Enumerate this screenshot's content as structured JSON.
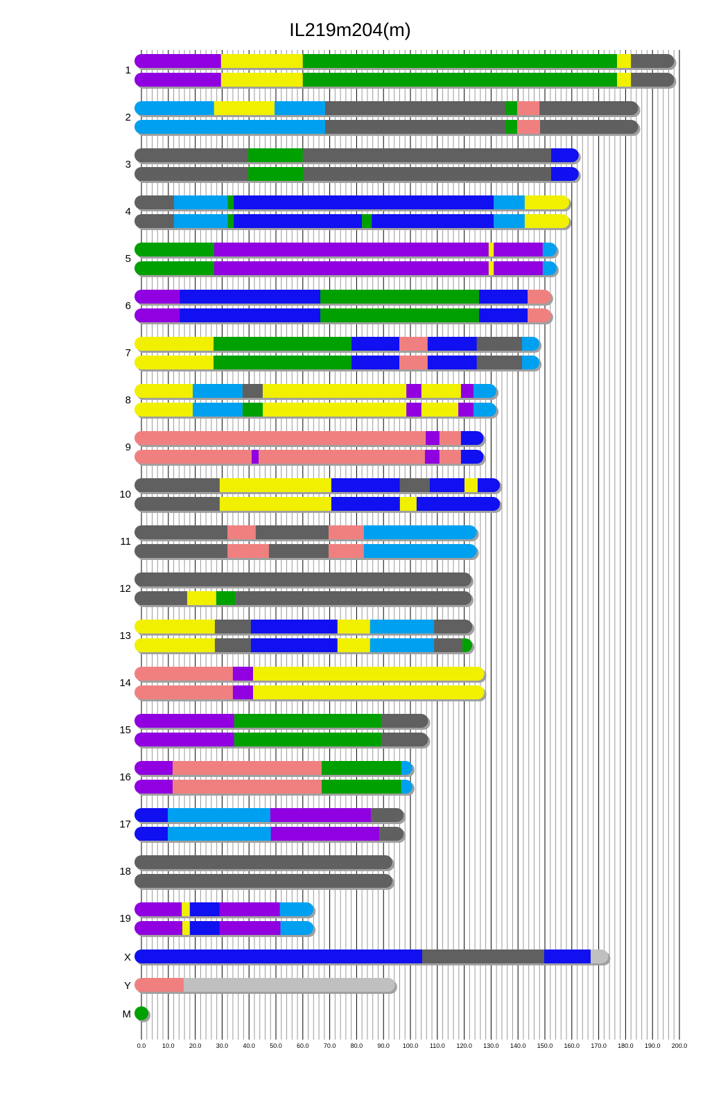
{
  "title": "IL219m204(m)",
  "colors": {
    "P": "#9000e0",
    "Y": "#f0f000",
    "G": "#00a000",
    "D": "#606060",
    "L": "#00a0f0",
    "B": "#1010f0",
    "K": "#f08080",
    "S": "#c0c0c0"
  },
  "chart_data": {
    "type": "chromosome-painting",
    "xlim": [
      0,
      200
    ],
    "xticks": [
      "0.0",
      "10.0",
      "20.0",
      "30.0",
      "40.0",
      "50.0",
      "60.0",
      "70.0",
      "80.0",
      "90.0",
      "100.0",
      "110.0",
      "120.0",
      "130.0",
      "140.0",
      "150.0",
      "160.0",
      "170.0",
      "180.0",
      "190.0",
      "200.0"
    ],
    "chromosomes": [
      {
        "name": "1",
        "length": 195.5,
        "haplotypes": [
          [
            [
              29.6,
              "P"
            ],
            [
              60,
              "Y"
            ],
            [
              176.8,
              "G"
            ],
            [
              182,
              "Y"
            ],
            [
              195.5,
              "D"
            ]
          ],
          [
            [
              29.6,
              "P"
            ],
            [
              60,
              "Y"
            ],
            [
              176.8,
              "G"
            ],
            [
              182,
              "Y"
            ],
            [
              195.5,
              "D"
            ]
          ]
        ]
      },
      {
        "name": "2",
        "length": 182.1,
        "haplotypes": [
          [
            [
              27,
              "L"
            ],
            [
              49.5,
              "Y"
            ],
            [
              68.3,
              "L"
            ],
            [
              135.3,
              "D"
            ],
            [
              139.7,
              "G"
            ],
            [
              148,
              "K"
            ],
            [
              182.1,
              "D"
            ]
          ],
          [
            [
              68.3,
              "L"
            ],
            [
              135.3,
              "D"
            ],
            [
              139.7,
              "G"
            ],
            [
              148.2,
              "K"
            ],
            [
              182.1,
              "D"
            ]
          ]
        ]
      },
      {
        "name": "3",
        "length": 160.0,
        "haplotypes": [
          [
            [
              39.7,
              "D"
            ],
            [
              60,
              "G"
            ],
            [
              152.3,
              "D"
            ],
            [
              160,
              "B"
            ]
          ],
          [
            [
              39.7,
              "D"
            ],
            [
              60.3,
              "G"
            ],
            [
              152.3,
              "D"
            ],
            [
              160,
              "B"
            ]
          ]
        ]
      },
      {
        "name": "4",
        "length": 156.5,
        "haplotypes": [
          [
            [
              12.1,
              "D"
            ],
            [
              32,
              "L"
            ],
            [
              34.3,
              "G"
            ],
            [
              131,
              "B"
            ],
            [
              142.5,
              "L"
            ],
            [
              156.5,
              "Y"
            ]
          ],
          [
            [
              12.1,
              "D"
            ],
            [
              32,
              "L"
            ],
            [
              34.3,
              "G"
            ],
            [
              82,
              "B"
            ],
            [
              85.6,
              "G"
            ],
            [
              131,
              "B"
            ],
            [
              142.5,
              "L"
            ],
            [
              156.5,
              "Y"
            ]
          ]
        ]
      },
      {
        "name": "5",
        "length": 151.8,
        "haplotypes": [
          [
            [
              27,
              "G"
            ],
            [
              129.1,
              "P"
            ],
            [
              131,
              "Y"
            ],
            [
              149.2,
              "P"
            ],
            [
              151.8,
              "L"
            ]
          ],
          [
            [
              27,
              "G"
            ],
            [
              129.1,
              "P"
            ],
            [
              131,
              "Y"
            ],
            [
              149.2,
              "P"
            ],
            [
              151.8,
              "L"
            ]
          ]
        ]
      },
      {
        "name": "6",
        "length": 149.7,
        "haplotypes": [
          [
            [
              14.2,
              "P"
            ],
            [
              66.5,
              "B"
            ],
            [
              125.5,
              "G"
            ],
            [
              143.6,
              "B"
            ],
            [
              149.7,
              "K"
            ]
          ],
          [
            [
              14.2,
              "P"
            ],
            [
              66.5,
              "B"
            ],
            [
              125.5,
              "G"
            ],
            [
              143.6,
              "B"
            ],
            [
              149.7,
              "K"
            ]
          ]
        ]
      },
      {
        "name": "7",
        "length": 145.4,
        "haplotypes": [
          [
            [
              26.8,
              "Y"
            ],
            [
              78.1,
              "G"
            ],
            [
              95.9,
              "B"
            ],
            [
              106.4,
              "K"
            ],
            [
              124.7,
              "B"
            ],
            [
              141.5,
              "D"
            ],
            [
              145.4,
              "L"
            ]
          ],
          [
            [
              26.8,
              "Y"
            ],
            [
              78.1,
              "G"
            ],
            [
              95.9,
              "B"
            ],
            [
              106.4,
              "K"
            ],
            [
              124.7,
              "B"
            ],
            [
              141.5,
              "D"
            ],
            [
              145.4,
              "L"
            ]
          ]
        ]
      },
      {
        "name": "8",
        "length": 129.4,
        "haplotypes": [
          [
            [
              19.1,
              "Y"
            ],
            [
              37.6,
              "L"
            ],
            [
              45.1,
              "D"
            ],
            [
              98.5,
              "Y"
            ],
            [
              104.1,
              "P"
            ],
            [
              118.8,
              "Y"
            ],
            [
              123.5,
              "P"
            ],
            [
              129.4,
              "L"
            ]
          ],
          [
            [
              19.1,
              "Y"
            ],
            [
              37.6,
              "L"
            ],
            [
              45.1,
              "G"
            ],
            [
              98.5,
              "Y"
            ],
            [
              104.1,
              "P"
            ],
            [
              117.8,
              "Y"
            ],
            [
              123.5,
              "P"
            ],
            [
              129.4,
              "L"
            ]
          ]
        ]
      },
      {
        "name": "9",
        "length": 124.6,
        "haplotypes": [
          [
            [
              105.7,
              "K"
            ],
            [
              110.8,
              "P"
            ],
            [
              118.8,
              "K"
            ],
            [
              124.6,
              "B"
            ]
          ],
          [
            [
              41,
              "K"
            ],
            [
              43.6,
              "P"
            ],
            [
              105.4,
              "K"
            ],
            [
              110.8,
              "P"
            ],
            [
              118.8,
              "K"
            ],
            [
              124.6,
              "B"
            ]
          ]
        ]
      },
      {
        "name": "10",
        "length": 130.7,
        "haplotypes": [
          [
            [
              29.1,
              "D"
            ],
            [
              70.6,
              "Y"
            ],
            [
              96.1,
              "B"
            ],
            [
              107.2,
              "D"
            ],
            [
              120.1,
              "B"
            ],
            [
              125,
              "Y"
            ],
            [
              130.7,
              "B"
            ]
          ],
          [
            [
              29.1,
              "D"
            ],
            [
              70.6,
              "Y"
            ],
            [
              96.1,
              "B"
            ],
            [
              102.3,
              "Y"
            ],
            [
              130.7,
              "B"
            ]
          ]
        ]
      },
      {
        "name": "11",
        "length": 122.1,
        "haplotypes": [
          [
            [
              32,
              "D"
            ],
            [
              42.5,
              "K"
            ],
            [
              69.6,
              "D"
            ],
            [
              82.7,
              "K"
            ],
            [
              122.1,
              "L"
            ]
          ],
          [
            [
              32,
              "D"
            ],
            [
              47.4,
              "K"
            ],
            [
              69.6,
              "D"
            ],
            [
              82.7,
              "K"
            ],
            [
              122.1,
              "L"
            ]
          ]
        ]
      },
      {
        "name": "12",
        "length": 120.1,
        "haplotypes": [
          [
            [
              120.1,
              "D"
            ]
          ],
          [
            [
              17,
              "D"
            ],
            [
              27.8,
              "Y"
            ],
            [
              35,
              "G"
            ],
            [
              120.1,
              "D"
            ]
          ]
        ]
      },
      {
        "name": "13",
        "length": 120.4,
        "haplotypes": [
          [
            [
              27.3,
              "Y"
            ],
            [
              40.7,
              "D"
            ],
            [
              72.9,
              "B"
            ],
            [
              85,
              "Y"
            ],
            [
              108.8,
              "L"
            ],
            [
              120.4,
              "D"
            ]
          ],
          [
            [
              27.3,
              "Y"
            ],
            [
              40.7,
              "D"
            ],
            [
              72.9,
              "B"
            ],
            [
              85,
              "Y"
            ],
            [
              108.8,
              "L"
            ],
            [
              119.3,
              "D"
            ],
            [
              120.4,
              "G"
            ]
          ]
        ]
      },
      {
        "name": "14",
        "length": 124.9,
        "haplotypes": [
          [
            [
              34,
              "K"
            ],
            [
              41.5,
              "P"
            ],
            [
              124.9,
              "Y"
            ]
          ],
          [
            [
              34,
              "K"
            ],
            [
              41.5,
              "P"
            ],
            [
              124.9,
              "Y"
            ]
          ]
        ]
      },
      {
        "name": "15",
        "length": 104.0,
        "haplotypes": [
          [
            [
              34.5,
              "P"
            ],
            [
              89.4,
              "G"
            ],
            [
              104,
              "D"
            ]
          ],
          [
            [
              34.5,
              "P"
            ],
            [
              89.4,
              "G"
            ],
            [
              104,
              "D"
            ]
          ]
        ]
      },
      {
        "name": "16",
        "length": 98.2,
        "haplotypes": [
          [
            [
              11.6,
              "P"
            ],
            [
              67,
              "K"
            ],
            [
              96.6,
              "G"
            ],
            [
              98.2,
              "L"
            ]
          ],
          [
            [
              11.6,
              "P"
            ],
            [
              67,
              "K"
            ],
            [
              96.6,
              "G"
            ],
            [
              98.2,
              "L"
            ]
          ]
        ]
      },
      {
        "name": "17",
        "length": 94.9,
        "haplotypes": [
          [
            [
              9.8,
              "B"
            ],
            [
              47.9,
              "L"
            ],
            [
              85.3,
              "P"
            ],
            [
              94.9,
              "D"
            ]
          ],
          [
            [
              9.8,
              "B"
            ],
            [
              48.1,
              "L"
            ],
            [
              88.4,
              "P"
            ],
            [
              94.9,
              "D"
            ]
          ]
        ]
      },
      {
        "name": "18",
        "length": 90.7,
        "haplotypes": [
          [
            [
              90.7,
              "D"
            ]
          ],
          [
            [
              90.7,
              "D"
            ]
          ]
        ]
      },
      {
        "name": "19",
        "length": 61.4,
        "haplotypes": [
          [
            [
              15,
              "P"
            ],
            [
              18,
              "Y"
            ],
            [
              29.1,
              "B"
            ],
            [
              51.5,
              "P"
            ],
            [
              61.4,
              "L"
            ]
          ],
          [
            [
              15.2,
              "P"
            ],
            [
              18,
              "Y"
            ],
            [
              29.1,
              "B"
            ],
            [
              51.7,
              "P"
            ],
            [
              61.4,
              "L"
            ]
          ]
        ]
      },
      {
        "name": "X",
        "length": 171.0,
        "haplotypes": [
          [
            [
              104.4,
              "B"
            ],
            [
              149.7,
              "D"
            ],
            [
              167,
              "B"
            ],
            [
              171,
              "S"
            ]
          ]
        ]
      },
      {
        "name": "Y",
        "length": 91.7,
        "haplotypes": [
          [
            [
              15.7,
              "K"
            ],
            [
              91.7,
              "S"
            ]
          ]
        ]
      },
      {
        "name": "M",
        "length": 0.016,
        "haplotypes": [
          [
            [
              0.016,
              "G"
            ]
          ]
        ]
      }
    ]
  }
}
